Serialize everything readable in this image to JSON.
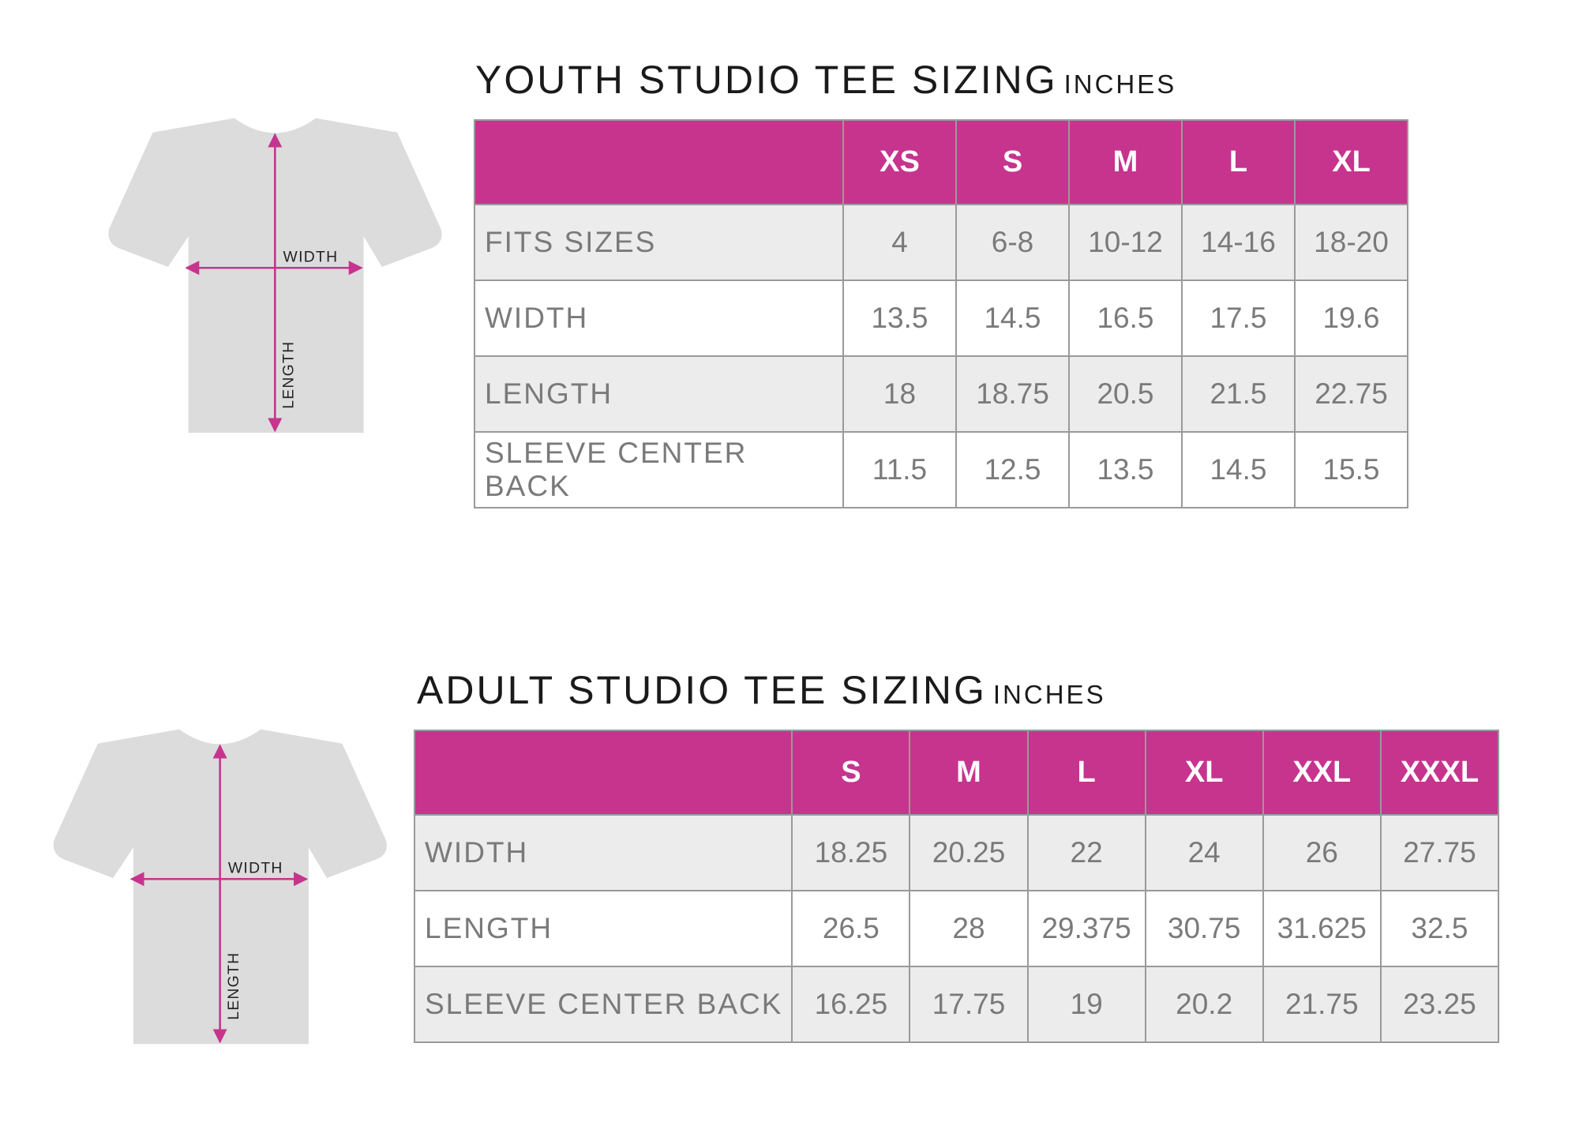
{
  "youth": {
    "title": "YOUTH STUDIO TEE SIZING",
    "unit": "INCHES",
    "sizes": [
      "XS",
      "S",
      "M",
      "L",
      "XL"
    ],
    "rows": [
      {
        "label": "FITS SIZES",
        "values": [
          "4",
          "6-8",
          "10-12",
          "14-16",
          "18-20"
        ]
      },
      {
        "label": "WIDTH",
        "values": [
          "13.5",
          "14.5",
          "16.5",
          "17.5",
          "19.6"
        ]
      },
      {
        "label": "LENGTH",
        "values": [
          "18",
          "18.75",
          "20.5",
          "21.5",
          "22.75"
        ]
      },
      {
        "label": "SLEEVE CENTER BACK",
        "values": [
          "11.5",
          "12.5",
          "13.5",
          "14.5",
          "15.5"
        ]
      }
    ],
    "diagram": {
      "width_label": "WIDTH",
      "length_label": "LENGTH"
    }
  },
  "adult": {
    "title": "ADULT STUDIO TEE SIZING",
    "unit": "INCHES",
    "sizes": [
      "S",
      "M",
      "L",
      "XL",
      "XXL",
      "XXXL"
    ],
    "rows": [
      {
        "label": "WIDTH",
        "values": [
          "18.25",
          "20.25",
          "22",
          "24",
          "26",
          "27.75"
        ]
      },
      {
        "label": "LENGTH",
        "values": [
          "26.5",
          "28",
          "29.375",
          "30.75",
          "31.625",
          "32.5"
        ]
      },
      {
        "label": "SLEEVE CENTER BACK",
        "values": [
          "16.25",
          "17.75",
          "19",
          "20.2",
          "21.75",
          "23.25"
        ]
      }
    ],
    "diagram": {
      "width_label": "WIDTH",
      "length_label": "LENGTH"
    }
  }
}
